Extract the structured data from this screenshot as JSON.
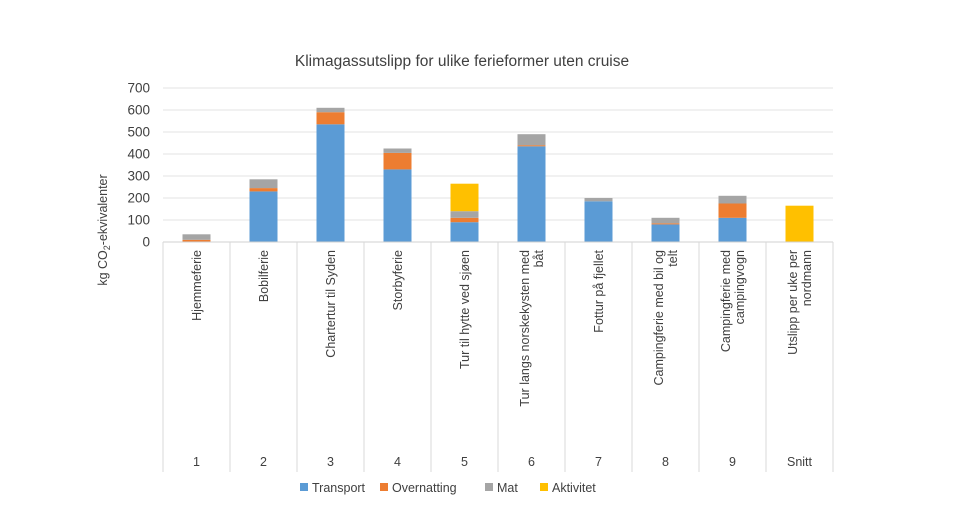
{
  "chart_data": {
    "type": "bar",
    "stacked": true,
    "title": "Klimagassutslipp for ulike ferieformer uten cruise",
    "ylabel_main": "kg CO",
    "ylabel_sub": "2",
    "ylabel_tail": "-ekvivalenter",
    "xlabel": "",
    "ylim": [
      0,
      700
    ],
    "yticks": [
      "0",
      "100",
      "200",
      "300",
      "400",
      "500",
      "600",
      "700"
    ],
    "ytick_values": [
      0,
      100,
      200,
      300,
      400,
      500,
      600,
      700
    ],
    "grid": true,
    "legend_position": "bottom",
    "categories": [
      {
        "label_lines": [
          "Hjemmeferie"
        ],
        "group": "1"
      },
      {
        "label_lines": [
          "Bobilferie"
        ],
        "group": "2"
      },
      {
        "label_lines": [
          "Chartertur til Syden"
        ],
        "group": "3"
      },
      {
        "label_lines": [
          "Storbyferie"
        ],
        "group": "4"
      },
      {
        "label_lines": [
          "Tur til hytte ved sjøen"
        ],
        "group": "5"
      },
      {
        "label_lines": [
          "Tur langs norskekysten med",
          "båt"
        ],
        "group": "6"
      },
      {
        "label_lines": [
          "Fottur på fjellet"
        ],
        "group": "7"
      },
      {
        "label_lines": [
          "Campingferie med bil og",
          "telt"
        ],
        "group": "8"
      },
      {
        "label_lines": [
          "Campingferie med",
          "campingvogn"
        ],
        "group": "9"
      },
      {
        "label_lines": [
          "Utslipp per uke per",
          "nordmann"
        ],
        "group": "Snitt"
      }
    ],
    "series": [
      {
        "name": "Transport",
        "color": "#5b9bd5",
        "values": [
          0,
          230,
          535,
          330,
          90,
          435,
          185,
          80,
          110,
          0
        ]
      },
      {
        "name": "Overnatting",
        "color": "#ed7d31",
        "values": [
          10,
          15,
          55,
          75,
          20,
          5,
          0,
          5,
          65,
          0
        ]
      },
      {
        "name": "Mat",
        "color": "#a5a5a5",
        "values": [
          25,
          40,
          20,
          20,
          30,
          50,
          15,
          25,
          35,
          0
        ]
      },
      {
        "name": "Aktivitet",
        "color": "#ffc000",
        "values": [
          0,
          0,
          0,
          0,
          125,
          0,
          0,
          0,
          0,
          165
        ]
      }
    ]
  }
}
